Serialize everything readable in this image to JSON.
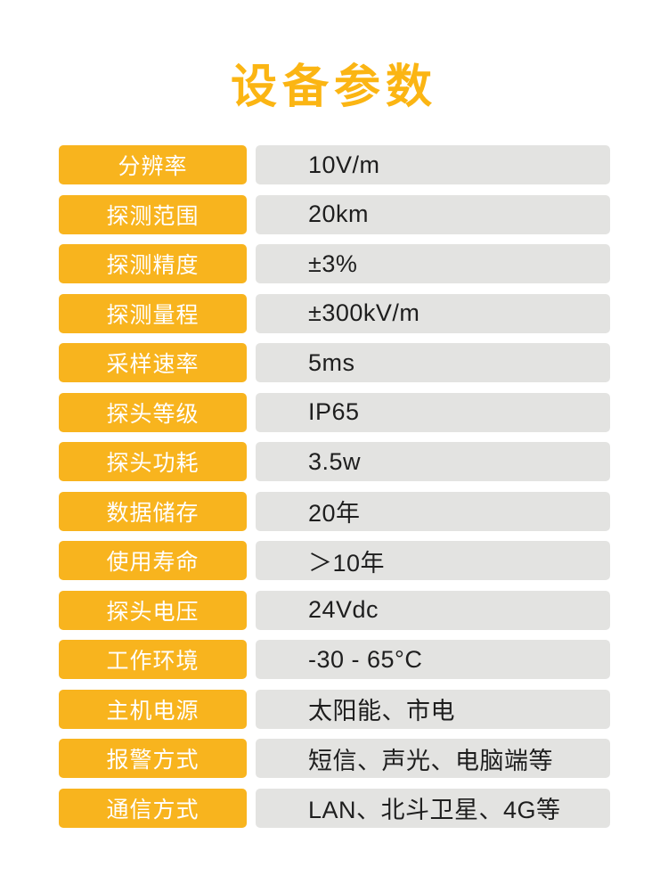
{
  "page": {
    "title": "设备参数"
  },
  "colors": {
    "title_yellow": "#FBB513",
    "accent_yellow": "#F8B41E",
    "value_bg": "#E3E3E1",
    "value_text": "#1E1E1E",
    "label_text": "#FFFFFF"
  },
  "table": {
    "rows": [
      {
        "label": "分辨率",
        "value": "10V/m"
      },
      {
        "label": "探测范围",
        "value": "20km"
      },
      {
        "label": "探测精度",
        "value": "±3%"
      },
      {
        "label": "探测量程",
        "value": "±300kV/m"
      },
      {
        "label": "采样速率",
        "value": "5ms"
      },
      {
        "label": "探头等级",
        "value": "IP65"
      },
      {
        "label": "探头功耗",
        "value": "3.5w"
      },
      {
        "label": "数据储存",
        "value": "20年"
      },
      {
        "label": "使用寿命",
        "value": "＞10年"
      },
      {
        "label": "探头电压",
        "value": "24Vdc"
      },
      {
        "label": "工作环境",
        "value": "-30 - 65°C"
      },
      {
        "label": "主机电源",
        "value": "太阳能、市电"
      },
      {
        "label": "报警方式",
        "value": "短信、声光、电脑端等"
      },
      {
        "label": "通信方式",
        "value": "LAN、北斗卫星、4G等"
      }
    ]
  }
}
